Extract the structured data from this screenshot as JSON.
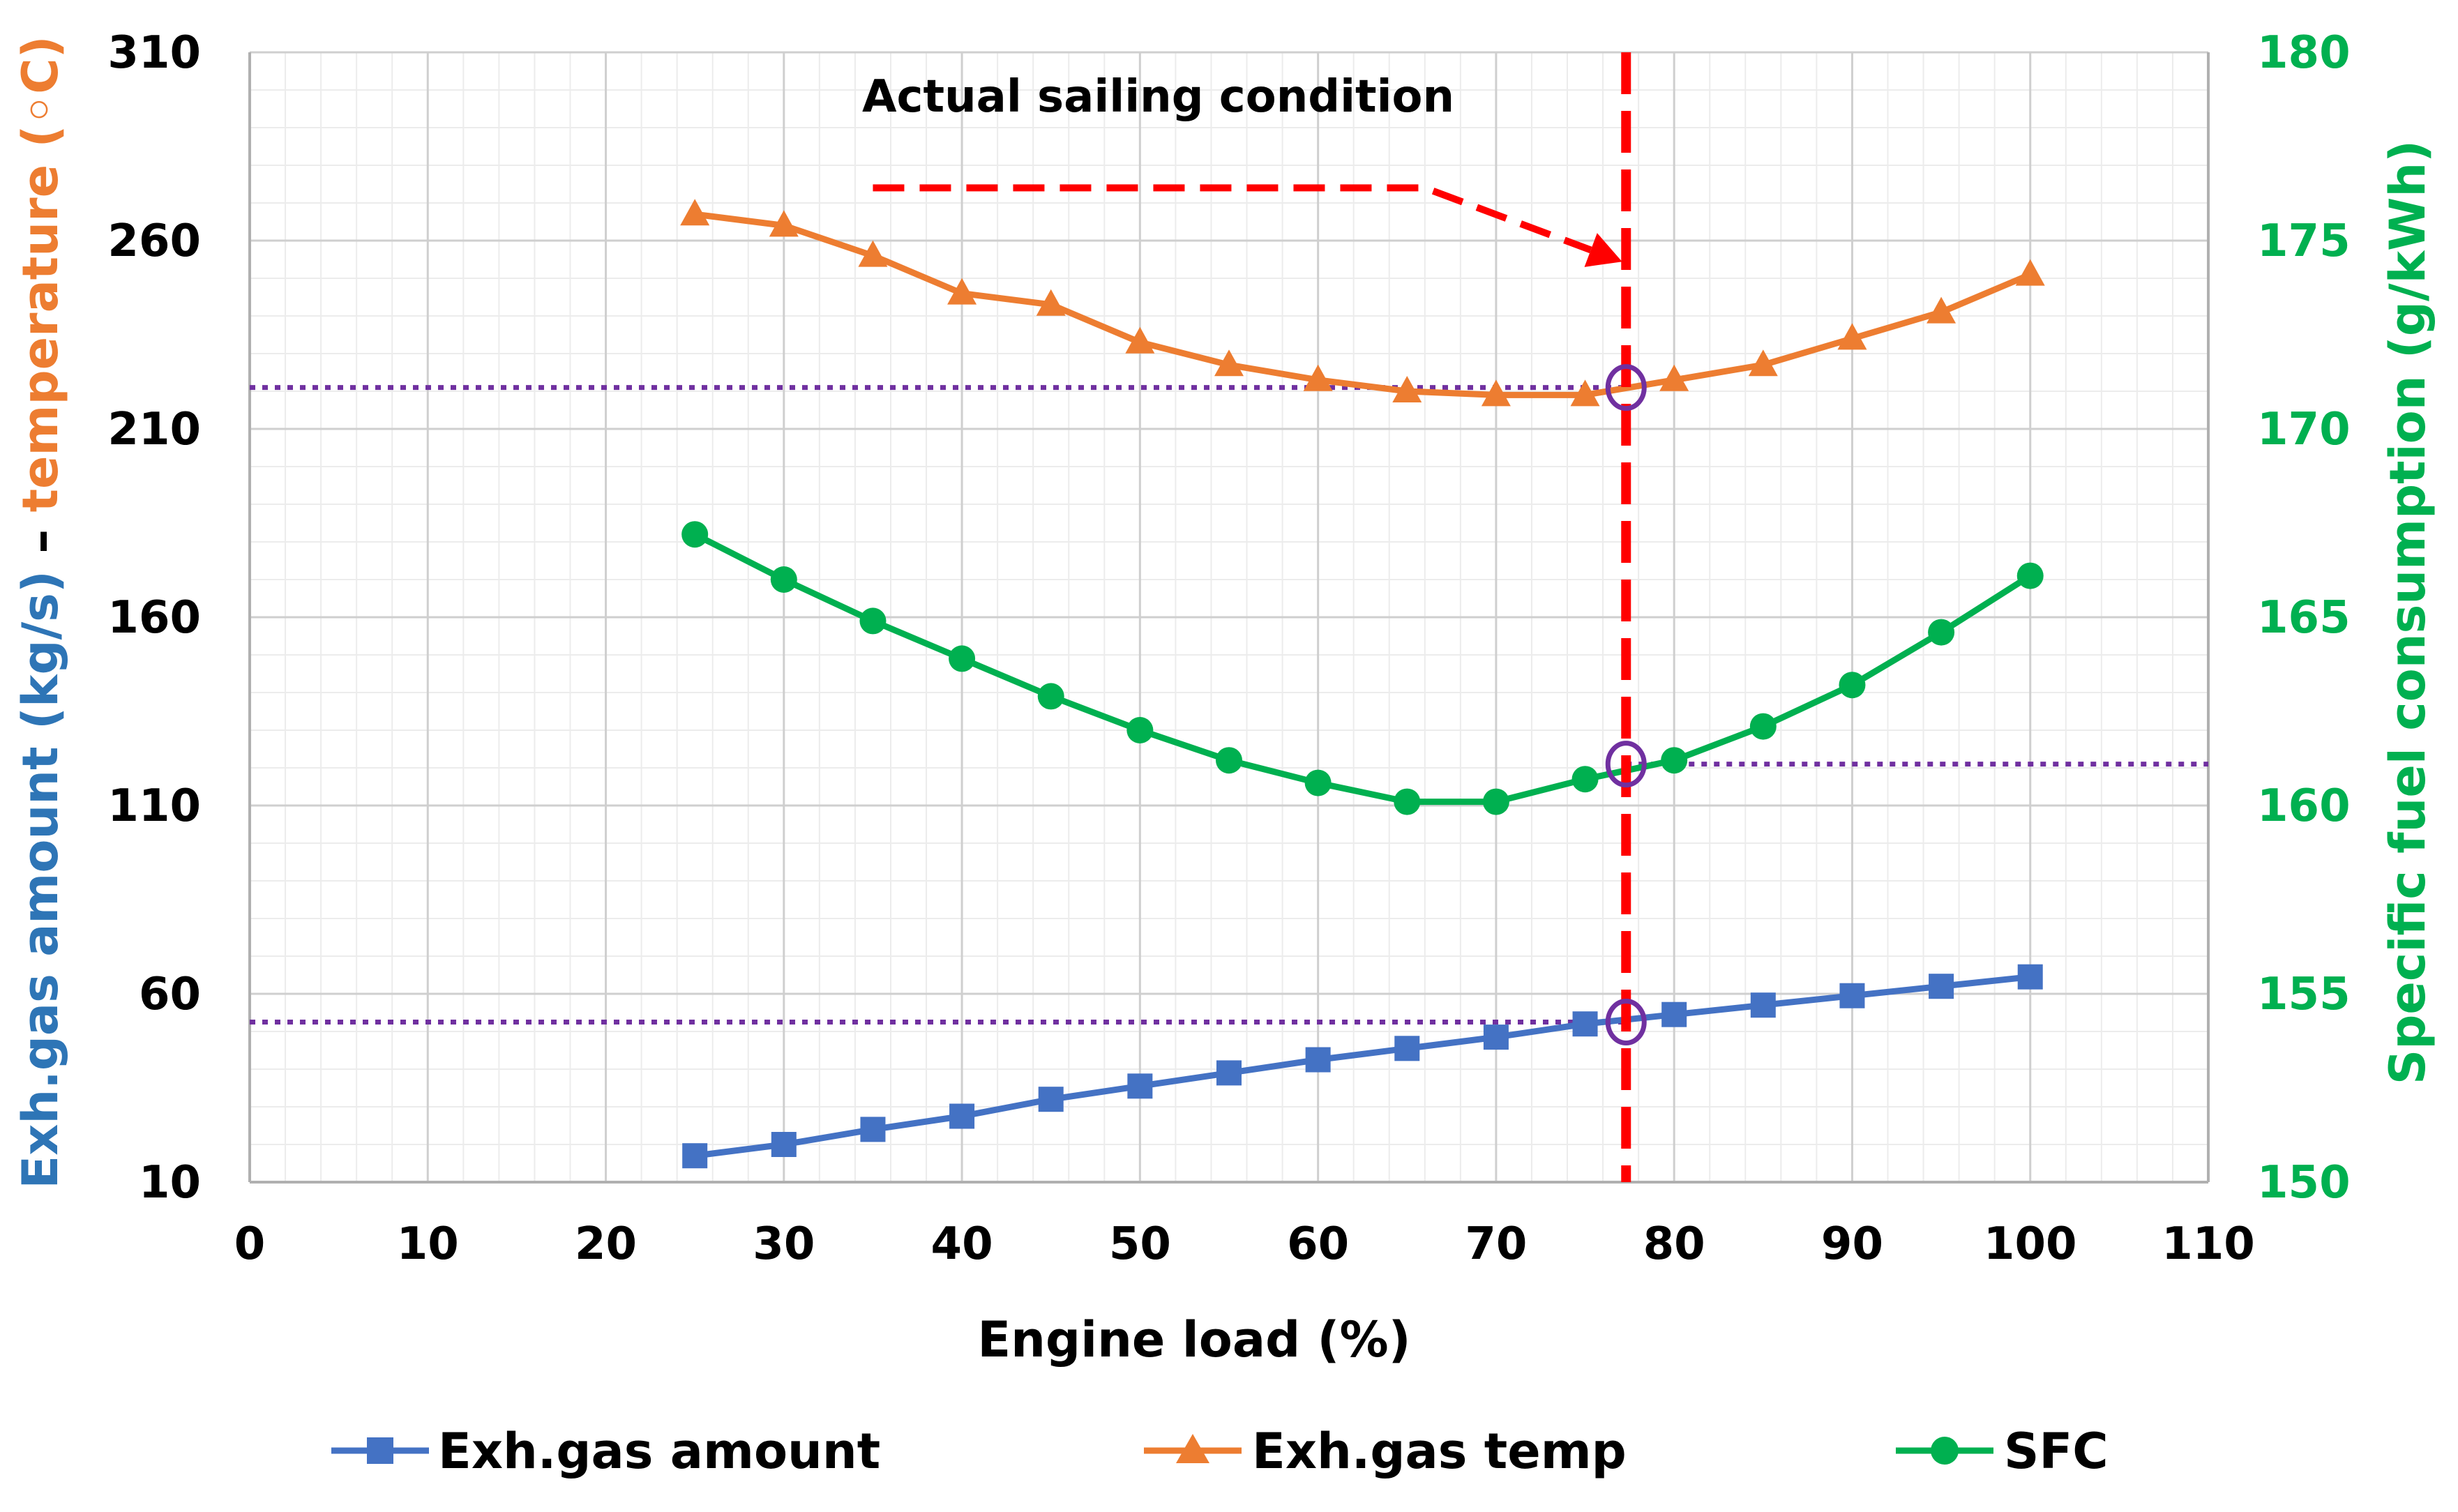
{
  "chart_data": {
    "type": "line",
    "x": [
      25,
      30,
      35,
      40,
      45,
      50,
      55,
      60,
      65,
      70,
      75,
      80,
      85,
      90,
      95,
      100
    ],
    "xlabel": "Engine load (%)",
    "xlim": [
      0,
      110
    ],
    "xticks": [
      "0",
      "10",
      "20",
      "30",
      "40",
      "50",
      "60",
      "70",
      "80",
      "90",
      "100",
      "110"
    ],
    "ylabel_left": {
      "part1": "Exh.gas amount (kg/s)",
      "sep": " – ",
      "part2": "temperature (◦C)"
    },
    "ylim_left": [
      10,
      310
    ],
    "yticks_left": [
      "10",
      "60",
      "110",
      "160",
      "210",
      "260",
      "310"
    ],
    "ylabel_right": "Specific fuel consumption (g/kWh)",
    "ylim_right": [
      150,
      180
    ],
    "yticks_right": [
      "150",
      "155",
      "160",
      "165",
      "170",
      "175",
      "180"
    ],
    "grid": true,
    "series": [
      {
        "name": "Exh.gas amount",
        "axis": "left",
        "marker": "square",
        "color": "#4472C4",
        "values": [
          17,
          20,
          24,
          27.5,
          32,
          35.5,
          39,
          42.5,
          45.5,
          48.5,
          52,
          54.5,
          57,
          59.5,
          62,
          64.5
        ]
      },
      {
        "name": "Exh.gas temp",
        "axis": "left",
        "marker": "triangle",
        "color": "#ED7D31",
        "values": [
          267,
          264,
          256,
          246,
          243,
          233,
          227,
          223,
          220,
          219,
          219,
          223,
          227,
          234,
          241,
          251
        ]
      },
      {
        "name": "SFC",
        "axis": "right",
        "marker": "circle",
        "color": "#00B050",
        "values": [
          167.2,
          166.0,
          164.9,
          163.9,
          162.9,
          162.0,
          161.2,
          160.6,
          160.1,
          160.1,
          160.7,
          161.2,
          162.1,
          163.2,
          164.6,
          166.1
        ]
      }
    ],
    "annotation": {
      "text": "Actual sailing condition",
      "x": 77.3,
      "color": "#FF0000",
      "arrow_from": [
        35,
        274
      ],
      "arrow_bend": [
        66,
        274
      ],
      "arrow_to": [
        77.3,
        254
      ]
    },
    "reference_lines": {
      "color": "#7030A0",
      "temp_level": 221,
      "sfc_level": 161.1,
      "amount_level": 52.5
    },
    "legend_position": "bottom"
  }
}
